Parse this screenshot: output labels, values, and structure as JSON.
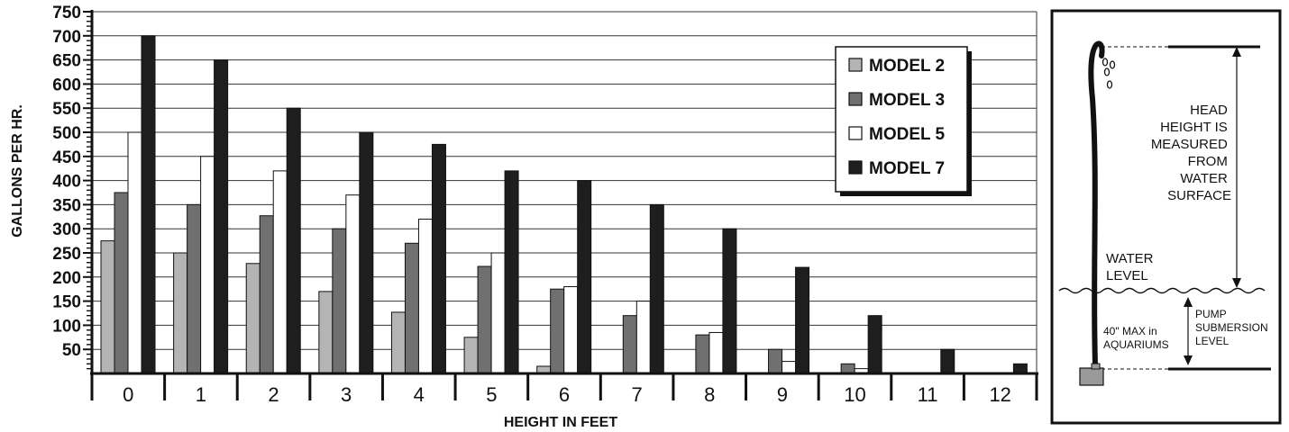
{
  "chart_data": {
    "type": "bar",
    "xlabel": "HEIGHT IN FEET",
    "ylabel": "GALLONS PER HR.",
    "ylim": [
      0,
      750
    ],
    "y_ticks": [
      "50",
      "100",
      "150",
      "200",
      "250",
      "300",
      "350",
      "400",
      "450",
      "500",
      "550",
      "600",
      "650",
      "700",
      "750"
    ],
    "grid": true,
    "legend_position": "top-right",
    "categories": [
      "0",
      "1",
      "2",
      "3",
      "4",
      "5",
      "6",
      "7",
      "8",
      "9",
      "10",
      "11",
      "12"
    ],
    "series": [
      {
        "name": "MODEL 2",
        "color": "#b4b4b4",
        "values": [
          275,
          250,
          228,
          170,
          127,
          75,
          15,
          0,
          0,
          0,
          0,
          0,
          0
        ]
      },
      {
        "name": "MODEL 3",
        "color": "#707070",
        "values": [
          375,
          350,
          327,
          300,
          270,
          222,
          175,
          120,
          80,
          50,
          20,
          0,
          0
        ]
      },
      {
        "name": "MODEL 5",
        "color": "#ffffff",
        "values": [
          500,
          450,
          420,
          370,
          320,
          250,
          180,
          150,
          85,
          25,
          10,
          0,
          0
        ]
      },
      {
        "name": "MODEL 7",
        "color": "#1e1e1e",
        "values": [
          700,
          650,
          550,
          500,
          475,
          420,
          400,
          350,
          300,
          220,
          120,
          50,
          20
        ]
      }
    ]
  },
  "diagram": {
    "head_label": [
      "HEAD",
      "HEIGHT IS",
      "MEASURED",
      "FROM",
      "WATER",
      "SURFACE"
    ],
    "water_label": [
      "WATER",
      "LEVEL"
    ],
    "max_label": [
      "40\" MAX in",
      "AQUARIUMS"
    ],
    "submersion_label": [
      "PUMP",
      "SUBMERSION",
      "LEVEL"
    ]
  }
}
